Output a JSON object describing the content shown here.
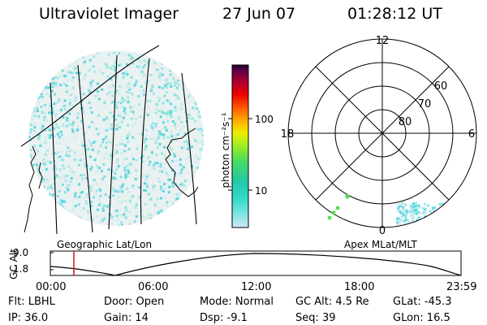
{
  "header": {
    "title": "Ultraviolet Imager",
    "date": "27 Jun 07",
    "time": "01:28:12 UT"
  },
  "colorbar": {
    "unit_label": "photon cm⁻²s⁻¹",
    "ticks": [
      "100",
      "10"
    ],
    "colors": [
      "#cfe8ee",
      "#7fe6e6",
      "#33d9c9",
      "#22c9a9",
      "#44d966",
      "#99ee22",
      "#eeee00",
      "#ffaa00",
      "#ff5500",
      "#ee0000",
      "#aa0033",
      "#660044",
      "#220033"
    ]
  },
  "polar_plot": {
    "mlt_labels": [
      "12",
      "18",
      "6",
      "0"
    ],
    "lat_labels": [
      "60",
      "70",
      "80"
    ]
  },
  "timeline": {
    "y_axis_label": "GC Alt",
    "y_ticks": [
      "9.0",
      "1.8"
    ],
    "left_caption": "Geographic Lat/Lon",
    "right_caption": "Apex MLat/MLT",
    "x_ticks": [
      "00:00",
      "06:00",
      "12:00",
      "18:00",
      "23:59"
    ]
  },
  "info": {
    "flt": "Flt: LBHL",
    "ip": "IP: 36.0",
    "door": "Door: Open",
    "gain": "Gain: 14",
    "mode": "Mode: Normal",
    "dsp": "Dsp:   -9.1",
    "gcalt": "GC Alt: 4.5 Re",
    "seq": "Seq: 39",
    "glat": "GLat:  -45.3",
    "glon": "GLon:   16.5"
  }
}
